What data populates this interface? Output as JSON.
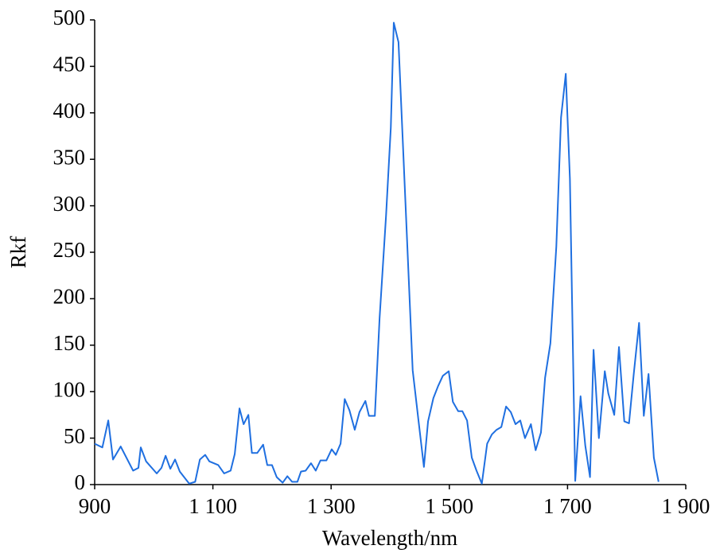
{
  "chart_data": {
    "type": "line",
    "x_label": "Wavelength/nm",
    "y_label": "Rkf",
    "xlim": [
      900,
      1900
    ],
    "xticks": [
      900,
      {
        "value": 1100,
        "label": "1 100"
      },
      {
        "value": 1300,
        "label": "1 300"
      },
      {
        "value": 1500,
        "label": "1 500"
      },
      {
        "value": 1700,
        "label": "1 700"
      },
      {
        "value": 1900,
        "label": "1 900"
      }
    ],
    "ylim": [
      0,
      500
    ],
    "yticks": [
      0,
      50,
      100,
      150,
      200,
      250,
      300,
      350,
      400,
      450,
      500
    ],
    "grid": false,
    "series": [
      {
        "color": "#1f6fe0",
        "x": [
          900,
          913,
          923,
          931,
          944,
          965,
          974,
          978,
          987,
          1005,
          1013,
          1020,
          1028,
          1036,
          1044,
          1060,
          1070,
          1078,
          1087,
          1094,
          1109,
          1119,
          1130,
          1137,
          1145,
          1152,
          1160,
          1166,
          1175,
          1185,
          1192,
          1200,
          1208,
          1218,
          1226,
          1234,
          1243,
          1249,
          1257,
          1266,
          1274,
          1282,
          1292,
          1301,
          1308,
          1316,
          1323,
          1331,
          1340,
          1348,
          1358,
          1364,
          1374,
          1382,
          1393,
          1401,
          1406,
          1414,
          1426,
          1438,
          1448,
          1457,
          1464,
          1473,
          1481,
          1489,
          1499,
          1506,
          1515,
          1522,
          1530,
          1538,
          1546,
          1555,
          1564,
          1572,
          1580,
          1588,
          1596,
          1604,
          1612,
          1620,
          1628,
          1638,
          1646,
          1655,
          1662,
          1671,
          1681,
          1689,
          1697,
          1704,
          1713,
          1722,
          1730,
          1738,
          1744,
          1753,
          1763,
          1769,
          1779,
          1787,
          1796,
          1804,
          1812,
          1821,
          1829,
          1837,
          1846,
          1854
        ],
        "values": [
          44,
          40,
          69,
          27,
          41,
          15,
          18,
          40,
          25,
          12,
          18,
          31,
          17,
          27,
          14,
          1,
          3,
          27,
          32,
          25,
          21,
          12,
          15,
          33,
          82,
          65,
          75,
          34,
          34,
          43,
          21,
          21,
          8,
          2,
          9,
          3,
          3,
          14,
          15,
          23,
          15,
          26,
          26,
          38,
          32,
          44,
          92,
          80,
          59,
          78,
          90,
          74,
          74,
          179,
          290,
          384,
          497,
          476,
          300,
          123,
          68,
          19,
          68,
          93,
          106,
          117,
          122,
          89,
          79,
          79,
          69,
          29,
          15,
          1,
          44,
          54,
          59,
          62,
          84,
          78,
          65,
          69,
          50,
          65,
          37,
          56,
          115,
          152,
          256,
          395,
          442,
          329,
          4,
          95,
          42,
          8,
          145,
          50,
          122,
          98,
          75,
          148,
          68,
          66,
          119,
          174,
          74,
          119,
          29,
          3
        ]
      }
    ]
  }
}
